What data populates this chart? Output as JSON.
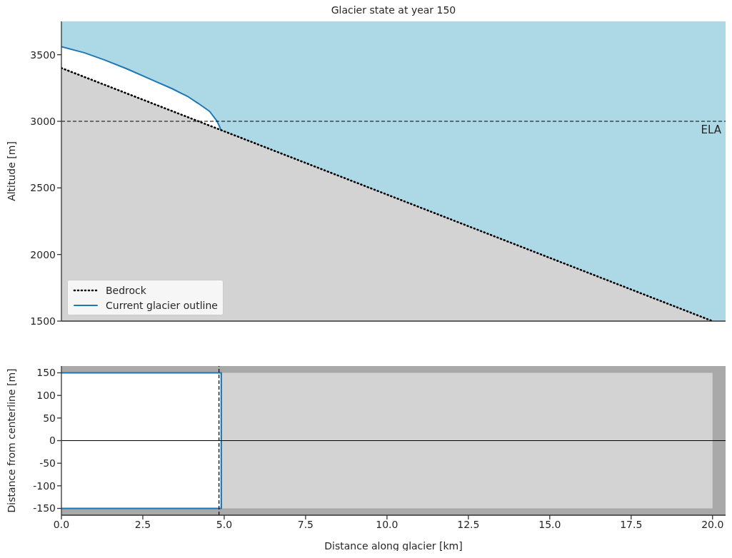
{
  "chart_data": [
    {
      "type": "area",
      "title": "Glacier state at year 150",
      "ylabel": "Altitude [m]",
      "xlim": [
        0,
        20.4
      ],
      "ylim": [
        1500,
        3750
      ],
      "xticks": [
        {
          "value": 0,
          "label": null
        },
        {
          "value": 2.5,
          "label": null
        },
        {
          "value": 5,
          "label": null
        },
        {
          "value": 7.5,
          "label": null
        },
        {
          "value": 10,
          "label": null
        },
        {
          "value": 12.5,
          "label": null
        },
        {
          "value": 15,
          "label": null
        },
        {
          "value": 17.5,
          "label": null
        },
        {
          "value": 20,
          "label": null
        }
      ],
      "yticks": [
        1500,
        2000,
        2500,
        3000,
        3500
      ],
      "tick_labels": "y",
      "legend": "bottom left",
      "ref_lines": [
        {
          "axis": "y",
          "value": 3000,
          "label": "ELA",
          "color": "#000000",
          "line_style": "dashed"
        }
      ],
      "series": [
        {
          "name": "Bedrock",
          "color": "#000000",
          "line_style": "dotted",
          "x": [
            0,
            20
          ],
          "values": [
            3400,
            1500
          ]
        },
        {
          "name": "Current glacier outline",
          "color": "#1f77b4",
          "line_style": "solid",
          "x": [
            0,
            0.7,
            1.33,
            2.0,
            2.79,
            3.4,
            3.89,
            4.2,
            4.55,
            4.77,
            4.85,
            4.91
          ],
          "values": [
            3560,
            3515,
            3460,
            3395,
            3310,
            3245,
            3185,
            3135,
            3075,
            3005,
            2965,
            2930
          ]
        }
      ]
    },
    {
      "type": "area",
      "xlabel": "Distance along glacier [km]",
      "ylabel": "Distance from centerline [m]",
      "xlim": [
        0,
        20.4
      ],
      "ylim": [
        -165,
        165
      ],
      "xticks": [
        {
          "value": 0,
          "label": "0.0"
        },
        {
          "value": 2.5,
          "label": "2.5"
        },
        {
          "value": 5,
          "label": "5.0"
        },
        {
          "value": 7.5,
          "label": "7.5"
        },
        {
          "value": 10,
          "label": "10.0"
        },
        {
          "value": 12.5,
          "label": "12.5"
        },
        {
          "value": 15,
          "label": "15.0"
        },
        {
          "value": 17.5,
          "label": "17.5"
        },
        {
          "value": 20,
          "label": "20.0"
        }
      ],
      "yticks": [
        -150,
        -100,
        -50,
        0,
        50,
        100,
        150
      ],
      "ref_lines": [
        {
          "axis": "y",
          "value": 0,
          "color": "#000000",
          "line_style": "solid"
        },
        {
          "axis": "x",
          "value": 4.84,
          "color": "#000000",
          "line_style": "dashed"
        }
      ],
      "series": [
        {
          "color": "#d3d3d3",
          "x": [
            0,
            20
          ],
          "values": [
            150,
            150
          ]
        },
        {
          "color": "#d3d3d3",
          "x": [
            0,
            20
          ],
          "values": [
            -150,
            -150
          ]
        },
        {
          "color": "#ffffff",
          "x": [
            0,
            4.91
          ],
          "values": [
            150,
            150
          ]
        },
        {
          "color": "#ffffff",
          "x": [
            0,
            4.91
          ],
          "values": [
            -150,
            -150
          ]
        },
        {
          "type": "line",
          "color": "#1f77b4",
          "x": [
            0,
            4.91,
            4.91,
            0
          ],
          "values": [
            150,
            150,
            -150,
            -150
          ]
        }
      ]
    }
  ]
}
